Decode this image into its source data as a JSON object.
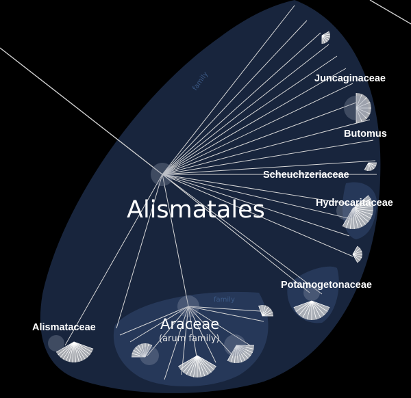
{
  "clades": {
    "order": {
      "name": "Alismatales"
    },
    "araceae": {
      "name": "Araceae",
      "common_name": "(arum family)"
    }
  },
  "families": [
    "Juncaginaceae",
    "Butomus",
    "Scheuchzeriaceae",
    "Hydrocaritaceae",
    "Potamogetonaceae",
    "Alismataceae"
  ],
  "rank_tags": {
    "upper": "family",
    "lower": "family"
  },
  "colors": {
    "background": "#000000",
    "clade_fill": "#1b2a45",
    "subclade_fill": "#2a3d60",
    "branch": "#d8d8d8",
    "label": "#ffffff"
  }
}
